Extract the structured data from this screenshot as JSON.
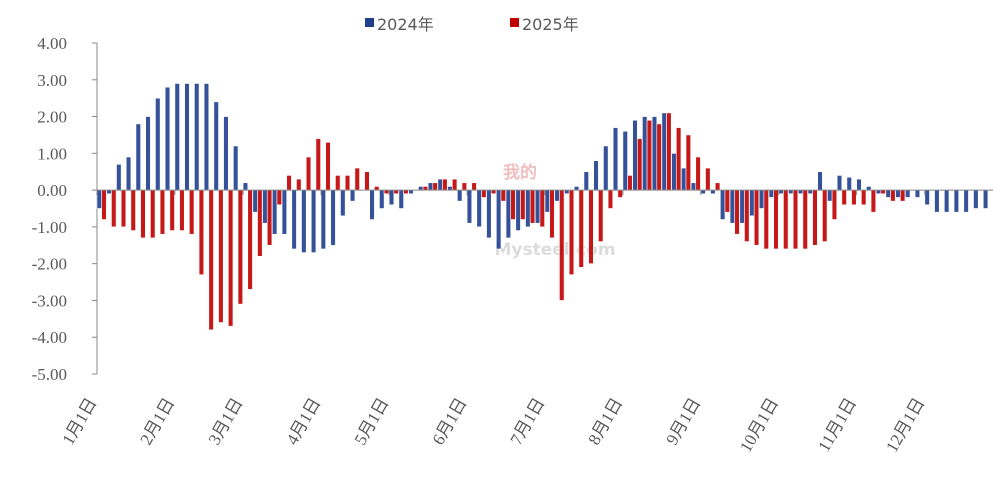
{
  "chart_data": {
    "type": "bar",
    "watermark": [
      "我的",
      "Mysteel.com"
    ],
    "categories": [
      "1月1日",
      null,
      null,
      null,
      null,
      null,
      null,
      null,
      "2月1日",
      null,
      null,
      null,
      null,
      null,
      null,
      "3月1日",
      null,
      null,
      null,
      null,
      null,
      null,
      null,
      "4月1日",
      null,
      null,
      null,
      null,
      null,
      null,
      "5月1日",
      null,
      null,
      null,
      null,
      null,
      null,
      null,
      "6月1日",
      null,
      null,
      null,
      null,
      null,
      null,
      null,
      "7月1日",
      null,
      null,
      null,
      null,
      null,
      null,
      null,
      "8月1日",
      null,
      null,
      null,
      null,
      null,
      null,
      null,
      "9月1日",
      null,
      null,
      null,
      null,
      null,
      null,
      null,
      "10月1日",
      null,
      null,
      null,
      null,
      null,
      null,
      null,
      "11月1日",
      null,
      null,
      null,
      null,
      null,
      null,
      "12月1日",
      null,
      null,
      null,
      null,
      null,
      null
    ],
    "series": [
      {
        "name": "2024年",
        "color": "#1f3f8f",
        "values": [
          -0.5,
          -0.1,
          0.7,
          0.9,
          1.8,
          2.0,
          2.5,
          2.8,
          2.9,
          2.9,
          2.9,
          2.9,
          2.4,
          2.0,
          1.2,
          0.2,
          -0.6,
          -0.9,
          -1.2,
          -1.2,
          -1.6,
          -1.7,
          -1.7,
          -1.6,
          -1.5,
          -0.7,
          -0.3,
          0.0,
          -0.8,
          -0.5,
          -0.4,
          -0.5,
          -0.1,
          0.1,
          0.2,
          0.3,
          0.1,
          -0.3,
          -0.9,
          -1.0,
          -1.3,
          -1.6,
          -1.3,
          -1.1,
          -1.0,
          -0.9,
          -0.6,
          -0.3,
          -0.1,
          0.1,
          0.5,
          0.8,
          1.2,
          1.7,
          1.6,
          1.9,
          2.0,
          2.0,
          2.1,
          1.0,
          0.6,
          0.2,
          -0.1,
          -0.1,
          -0.8,
          -0.9,
          -0.9,
          -0.7,
          -0.5,
          -0.2,
          -0.1,
          -0.1,
          -0.1,
          -0.1,
          0.5,
          -0.3,
          0.4,
          0.35,
          0.3,
          0.1,
          -0.1,
          -0.2,
          -0.2,
          -0.2,
          -0.2,
          -0.4,
          -0.6,
          -0.6,
          -0.6,
          -0.6,
          -0.5,
          -0.5
        ]
      },
      {
        "name": "2025年",
        "color": "#c00000",
        "values": [
          -0.8,
          -1.0,
          -1.0,
          -1.1,
          -1.3,
          -1.3,
          -1.2,
          -1.1,
          -1.1,
          -1.2,
          -2.3,
          -3.8,
          -3.6,
          -3.7,
          -3.1,
          -2.7,
          -1.8,
          -1.5,
          -0.4,
          0.4,
          0.3,
          0.9,
          1.4,
          1.3,
          0.4,
          0.4,
          0.6,
          0.5,
          0.1,
          -0.1,
          -0.1,
          -0.1,
          0.0,
          0.1,
          0.2,
          0.3,
          0.3,
          0.2,
          0.2,
          -0.2,
          -0.1,
          -0.3,
          -0.8,
          -0.8,
          -0.9,
          -1.0,
          -1.3,
          -3.0,
          -2.3,
          -2.1,
          -2.0,
          -1.4,
          -0.5,
          -0.2,
          0.4,
          1.4,
          1.9,
          1.8,
          2.1,
          1.7,
          1.5,
          0.9,
          0.6,
          0.2,
          -0.6,
          -1.2,
          -1.4,
          -1.5,
          -1.6,
          -1.6,
          -1.6,
          -1.6,
          -1.6,
          -1.5,
          -1.4,
          -0.8,
          -0.4,
          -0.4,
          -0.4,
          -0.6,
          -0.1,
          -0.3,
          -0.3,
          null,
          null,
          null,
          null,
          null,
          null,
          null,
          null,
          null
        ]
      }
    ],
    "ylim": [
      -5,
      4
    ],
    "yticks": [
      {
        "value": -5,
        "label": "-5.00"
      },
      {
        "value": -4,
        "label": "-4.00"
      },
      {
        "value": -3,
        "label": "-3.00"
      },
      {
        "value": -2,
        "label": "-2.00"
      },
      {
        "value": -1,
        "label": "-1.00"
      },
      {
        "value": 0,
        "label": "0.00"
      },
      {
        "value": 1,
        "label": "1.00"
      },
      {
        "value": 2,
        "label": "2.00"
      },
      {
        "value": 3,
        "label": "3.00"
      },
      {
        "value": 4,
        "label": "4.00"
      }
    ],
    "grid": false,
    "legend": "top"
  }
}
